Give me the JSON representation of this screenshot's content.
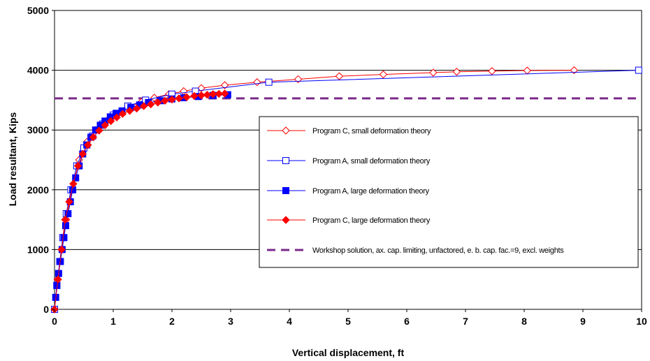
{
  "chart_data": {
    "type": "line",
    "title": "",
    "xlabel": "Vertical displacement, ft",
    "ylabel": "Load resultant, Kips",
    "xlim": [
      0,
      10
    ],
    "ylim": [
      0,
      5000
    ],
    "xticks": [
      "0",
      "1",
      "2",
      "3",
      "4",
      "5",
      "6",
      "7",
      "8",
      "9",
      "10"
    ],
    "yticks": [
      "0",
      "1000",
      "2000",
      "3000",
      "4000",
      "5000"
    ],
    "grid": "horizontal",
    "legend_position": "right",
    "series": [
      {
        "name": "Program C, small deformation theory",
        "color": "#ff0000",
        "marker": "open-diamond",
        "x": [
          0,
          0.05,
          0.12,
          0.2,
          0.3,
          0.42,
          0.55,
          0.7,
          0.88,
          1.05,
          1.25,
          1.48,
          1.7,
          1.95,
          2.2,
          2.5,
          2.9,
          3.45,
          4.15,
          4.85,
          5.6,
          6.45,
          6.85,
          7.45,
          8.05,
          8.85
        ],
        "y": [
          0,
          500,
          1000,
          1500,
          2000,
          2500,
          2800,
          3000,
          3150,
          3270,
          3380,
          3470,
          3540,
          3600,
          3650,
          3700,
          3750,
          3800,
          3850,
          3900,
          3930,
          3960,
          3975,
          3985,
          3995,
          4000
        ]
      },
      {
        "name": "Program A, small deformation theory",
        "color": "#0000ff",
        "marker": "open-square",
        "x": [
          0,
          0.04,
          0.09,
          0.14,
          0.2,
          0.28,
          0.38,
          0.5,
          0.65,
          0.82,
          1.0,
          1.25,
          1.55,
          2.0,
          2.4,
          3.65,
          9.95
        ],
        "y": [
          0,
          400,
          800,
          1200,
          1600,
          2000,
          2400,
          2700,
          2900,
          3100,
          3250,
          3400,
          3500,
          3600,
          3650,
          3800,
          4000
        ]
      },
      {
        "name": "Program A, large deformation theory",
        "color": "#0000ff",
        "marker": "filled-square",
        "x": [
          0.02,
          0.04,
          0.07,
          0.1,
          0.13,
          0.16,
          0.19,
          0.23,
          0.27,
          0.31,
          0.36,
          0.42,
          0.48,
          0.55,
          0.62,
          0.7,
          0.78,
          0.86,
          0.95,
          1.05,
          1.15,
          1.3,
          1.45,
          1.6,
          1.8,
          2.0,
          2.2,
          2.45,
          2.7,
          2.95
        ],
        "y": [
          200,
          400,
          600,
          800,
          1000,
          1200,
          1400,
          1600,
          1800,
          2000,
          2200,
          2400,
          2600,
          2750,
          2880,
          3000,
          3080,
          3150,
          3220,
          3280,
          3320,
          3380,
          3420,
          3460,
          3490,
          3520,
          3540,
          3560,
          3580,
          3590
        ]
      },
      {
        "name": "Program C, large deformation theory",
        "color": "#ff0000",
        "marker": "filled-diamond",
        "x": [
          0,
          0.06,
          0.12,
          0.18,
          0.25,
          0.32,
          0.4,
          0.48,
          0.57,
          0.66,
          0.76,
          0.86,
          0.96,
          1.06,
          1.16,
          1.28,
          1.4,
          1.52,
          1.64,
          1.76,
          1.88,
          2.0,
          2.12,
          2.25,
          2.38,
          2.5,
          2.6,
          2.7,
          2.8,
          2.9
        ],
        "y": [
          0,
          500,
          1000,
          1500,
          1800,
          2100,
          2400,
          2600,
          2750,
          2880,
          2990,
          3080,
          3150,
          3210,
          3270,
          3320,
          3360,
          3400,
          3430,
          3460,
          3490,
          3510,
          3530,
          3550,
          3570,
          3580,
          3590,
          3600,
          3605,
          3610
        ]
      },
      {
        "name": "Workshop solution,  ax. cap. limiting, unfactored, e. b. cap. fac.=9, excl. weights",
        "color": "#7b2a8a",
        "marker": "none",
        "style": "dashed",
        "x": [
          0,
          10
        ],
        "y": [
          3530,
          3530
        ]
      }
    ]
  }
}
